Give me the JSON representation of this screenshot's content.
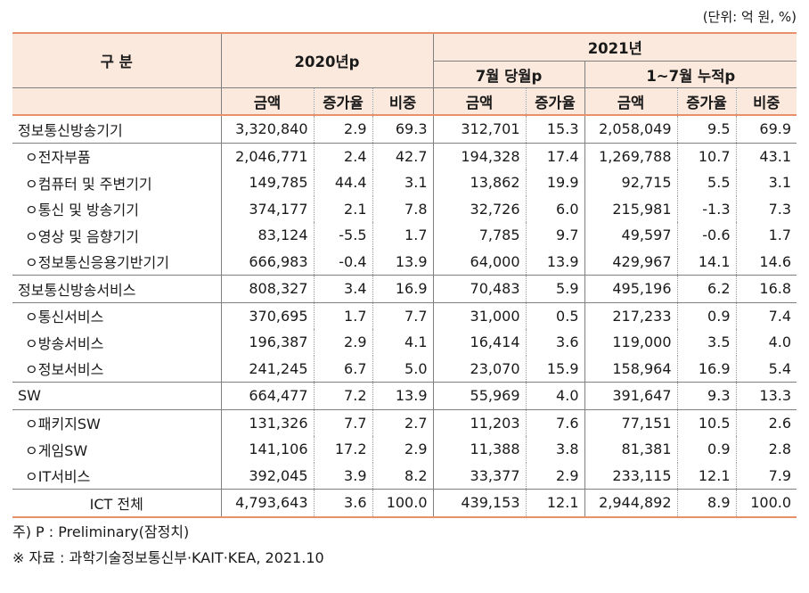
{
  "unit_note": "(단위: 억 원, %)",
  "header": {
    "category": "구 분",
    "y2020": "2020년p",
    "y2021": "2021년",
    "july_month": "7월 당월p",
    "jan_jul_cum": "1~7월 누적p",
    "amount": "금액",
    "growth": "증가율",
    "share": "비중"
  },
  "rows": [
    {
      "label": "정보통신방송기기",
      "sub": false,
      "group_start": true,
      "v": [
        "3,320,840",
        "2.9",
        "69.3",
        "312,701",
        "15.3",
        "2,058,049",
        "9.5",
        "69.9"
      ]
    },
    {
      "label": "ㅇ전자부품",
      "sub": true,
      "group_start": true,
      "v": [
        "2,046,771",
        "2.4",
        "42.7",
        "194,328",
        "17.4",
        "1,269,788",
        "10.7",
        "43.1"
      ]
    },
    {
      "label": "ㅇ컴퓨터 및 주변기기",
      "sub": true,
      "group_start": false,
      "v": [
        "149,785",
        "44.4",
        "3.1",
        "13,862",
        "19.9",
        "92,715",
        "5.5",
        "3.1"
      ]
    },
    {
      "label": "ㅇ통신 및 방송기기",
      "sub": true,
      "group_start": false,
      "v": [
        "374,177",
        "2.1",
        "7.8",
        "32,726",
        "6.0",
        "215,981",
        "-1.3",
        "7.3"
      ]
    },
    {
      "label": "ㅇ영상 및 음향기기",
      "sub": true,
      "group_start": false,
      "v": [
        "83,124",
        "-5.5",
        "1.7",
        "7,785",
        "9.7",
        "49,597",
        "-0.6",
        "1.7"
      ]
    },
    {
      "label": "ㅇ정보통신응용기반기기",
      "sub": true,
      "group_start": false,
      "v": [
        "666,983",
        "-0.4",
        "13.9",
        "64,000",
        "13.9",
        "429,967",
        "14.1",
        "14.6"
      ]
    },
    {
      "label": "정보통신방송서비스",
      "sub": false,
      "group_start": true,
      "v": [
        "808,327",
        "3.4",
        "16.9",
        "70,483",
        "5.9",
        "495,196",
        "6.2",
        "16.8"
      ]
    },
    {
      "label": "ㅇ통신서비스",
      "sub": true,
      "group_start": true,
      "v": [
        "370,695",
        "1.7",
        "7.7",
        "31,000",
        "0.5",
        "217,233",
        "0.9",
        "7.4"
      ]
    },
    {
      "label": "ㅇ방송서비스",
      "sub": true,
      "group_start": false,
      "v": [
        "196,387",
        "2.9",
        "4.1",
        "16,414",
        "3.6",
        "119,000",
        "3.5",
        "4.0"
      ]
    },
    {
      "label": "ㅇ정보서비스",
      "sub": true,
      "group_start": false,
      "v": [
        "241,245",
        "6.7",
        "5.0",
        "23,070",
        "15.9",
        "158,964",
        "16.9",
        "5.4"
      ]
    },
    {
      "label": "SW",
      "sub": false,
      "group_start": true,
      "v": [
        "664,477",
        "7.2",
        "13.9",
        "55,969",
        "4.0",
        "391,647",
        "9.3",
        "13.3"
      ]
    },
    {
      "label": "ㅇ패키지SW",
      "sub": true,
      "group_start": true,
      "v": [
        "131,326",
        "7.7",
        "2.7",
        "11,203",
        "7.6",
        "77,151",
        "10.5",
        "2.6"
      ]
    },
    {
      "label": "ㅇ게임SW",
      "sub": true,
      "group_start": false,
      "v": [
        "141,106",
        "17.2",
        "2.9",
        "11,388",
        "3.8",
        "81,381",
        "0.9",
        "2.8"
      ]
    },
    {
      "label": "ㅇIT서비스",
      "sub": true,
      "group_start": false,
      "v": [
        "392,045",
        "3.9",
        "8.2",
        "33,377",
        "2.9",
        "233,115",
        "12.1",
        "7.9"
      ]
    },
    {
      "label": "ICT 전체",
      "sub": false,
      "group_start": true,
      "total": true,
      "v": [
        "4,793,643",
        "3.6",
        "100.0",
        "439,153",
        "12.1",
        "2,944,892",
        "8.9",
        "100.0"
      ]
    }
  ],
  "notes": {
    "note1": "주) P : Preliminary(잠정치)",
    "note2": "※ 자료 : 과학기술정보통신부·KAIT·KEA, 2021.10"
  },
  "colors": {
    "header_bg": "#fce9dd",
    "rule": "#e8906a"
  }
}
